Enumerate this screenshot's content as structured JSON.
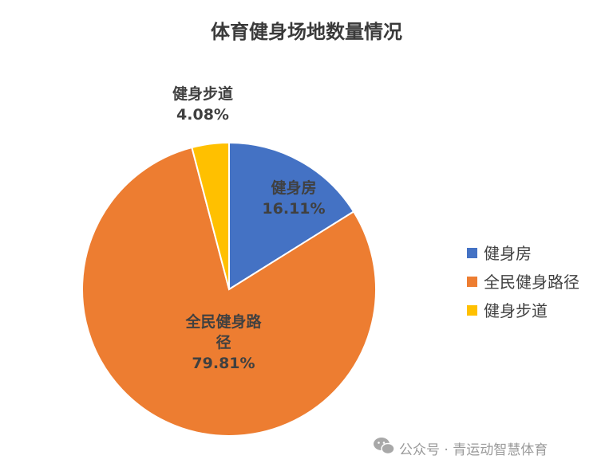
{
  "chart_data": {
    "type": "pie",
    "title": "体育健身场地数量情况",
    "categories": [
      "健身房",
      "全民健身路径",
      "健身步道"
    ],
    "values": [
      16.11,
      79.81,
      4.08
    ],
    "value_labels": [
      "16.11%",
      "79.81%",
      "4.08%"
    ],
    "label_lines": [
      [
        "健身房"
      ],
      [
        "全民健身路",
        "径"
      ],
      [
        "健身步道"
      ]
    ],
    "colors": [
      "#4472C4",
      "#ED7D31",
      "#FFC000"
    ],
    "legend_position": "right"
  },
  "watermark": {
    "text": "公众号 · 青运动智慧体育",
    "icon": "wechat-icon"
  }
}
